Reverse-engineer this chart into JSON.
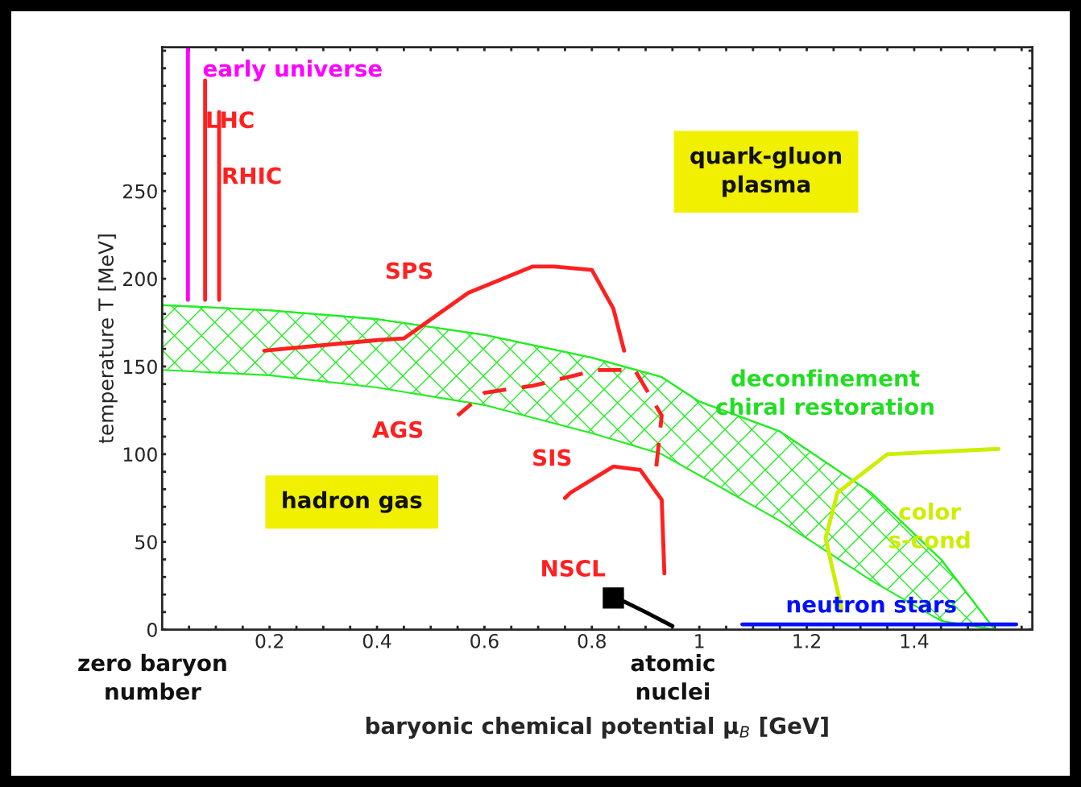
{
  "chart_data": {
    "type": "line",
    "xlabel": "baryonic chemical potential μ$_{B}$ [GeV]",
    "ylabel": "temperature T [MeV]",
    "xlim": [
      0,
      1.62
    ],
    "ylim": [
      0,
      332
    ],
    "xticks": [
      {
        "value": 0.05,
        "label": null
      },
      {
        "value": 0.1,
        "label": null
      },
      {
        "value": 0.15,
        "label": null
      },
      0.2,
      {
        "value": 0.25,
        "label": null
      },
      {
        "value": 0.3,
        "label": null
      },
      {
        "value": 0.35,
        "label": null
      },
      0.4,
      {
        "value": 0.45,
        "label": null
      },
      {
        "value": 0.5,
        "label": null
      },
      {
        "value": 0.55,
        "label": null
      },
      0.6,
      {
        "value": 0.65,
        "label": null
      },
      {
        "value": 0.7,
        "label": null
      },
      {
        "value": 0.75,
        "label": null
      },
      0.8,
      {
        "value": 0.85,
        "label": null
      },
      {
        "value": 0.9,
        "label": null
      },
      {
        "value": 0.95,
        "label": null
      },
      1,
      {
        "value": 1.05,
        "label": null
      },
      {
        "value": 1.1,
        "label": null
      },
      {
        "value": 1.15,
        "label": null
      },
      1.2,
      {
        "value": 1.25,
        "label": null
      },
      {
        "value": 1.3,
        "label": null
      },
      {
        "value": 1.35,
        "label": null
      },
      1.4,
      {
        "value": 1.45,
        "label": null
      },
      {
        "value": 1.5,
        "label": null
      },
      {
        "value": 1.55,
        "label": null
      },
      {
        "value": 1.6,
        "label": null
      }
    ],
    "yticks": [
      0,
      {
        "value": 10,
        "label": null
      },
      {
        "value": 20,
        "label": null
      },
      {
        "value": 30,
        "label": null
      },
      {
        "value": 40,
        "label": null
      },
      50,
      {
        "value": 60,
        "label": null
      },
      {
        "value": 70,
        "label": null
      },
      {
        "value": 80,
        "label": null
      },
      {
        "value": 90,
        "label": null
      },
      100,
      {
        "value": 110,
        "label": null
      },
      {
        "value": 120,
        "label": null
      },
      {
        "value": 130,
        "label": null
      },
      {
        "value": 140,
        "label": null
      },
      150,
      {
        "value": 160,
        "label": null
      },
      {
        "value": 170,
        "label": null
      },
      {
        "value": 180,
        "label": null
      },
      {
        "value": 190,
        "label": null
      },
      200,
      {
        "value": 210,
        "label": null
      },
      {
        "value": 220,
        "label": null
      },
      {
        "value": 230,
        "label": null
      },
      {
        "value": 240,
        "label": null
      },
      250,
      {
        "value": 260,
        "label": null
      },
      {
        "value": 270,
        "label": null
      },
      {
        "value": 280,
        "label": null
      },
      {
        "value": 290,
        "label": null
      },
      {
        "value": 300,
        "label": null
      },
      {
        "value": 310,
        "label": null
      },
      {
        "value": 320,
        "label": null
      },
      {
        "value": 330,
        "label": null
      }
    ],
    "grid": false,
    "legend": false,
    "series": [
      {
        "color": "#22ee22",
        "x": [
          0,
          0.2,
          0.4,
          0.6,
          0.8,
          0.93,
          1.0,
          1.15,
          1.32,
          1.45,
          1.55
        ],
        "values": [
          185,
          182,
          177,
          168,
          155,
          144,
          130,
          113,
          78,
          40,
          0
        ],
        "lower": [
          148,
          145,
          138,
          128,
          112,
          100,
          88,
          62,
          28,
          5,
          0
        ],
        "upper": [
          185,
          182,
          177,
          168,
          155,
          144,
          130,
          113,
          78,
          40,
          0
        ]
      },
      {
        "color": "#ff00ff",
        "x": [
          0.048,
          0.048
        ],
        "values": [
          332,
          188
        ]
      },
      {
        "color": "#ff2020",
        "x": [
          0.08,
          0.08
        ],
        "values": [
          313,
          188
        ]
      },
      {
        "color": "#ff2020",
        "x": [
          0.106,
          0.106
        ],
        "values": [
          295,
          188
        ]
      },
      {
        "color": "#ff2020",
        "x": [
          0.86,
          0.84,
          0.8,
          0.73,
          0.69,
          0.57,
          0.45,
          0.4,
          0.19
        ],
        "values": [
          159,
          183,
          205,
          207,
          207,
          192,
          166,
          165,
          159
        ]
      },
      {
        "color": "#ff2020",
        "line_style": "dashed",
        "x": [
          0.92,
          0.93,
          0.88,
          0.81,
          0.69,
          0.6,
          0.55
        ],
        "values": [
          93,
          122,
          148,
          148,
          139,
          135,
          122
        ]
      },
      {
        "color": "#ff2020",
        "x": [
          0.935,
          0.93,
          0.89,
          0.84,
          0.76,
          0.75
        ],
        "values": [
          32,
          74,
          91,
          93,
          78,
          75
        ]
      },
      {
        "color": "#ccee00",
        "x": [
          1.557,
          1.35,
          1.257,
          1.235,
          1.265
        ],
        "values": [
          103,
          100,
          78,
          52,
          12
        ]
      },
      {
        "color": "#0010ff",
        "x": [
          1.08,
          1.59
        ],
        "values": [
          3,
          3
        ]
      },
      {
        "color": "#000000",
        "x": [
          0.86,
          0.9,
          0.95
        ],
        "values": [
          16,
          10,
          2
        ]
      },
      {
        "type": "scatter",
        "marker": "square",
        "color": "#000000",
        "x": [
          0.84
        ],
        "values": [
          18
        ]
      }
    ],
    "annotations": [
      "early universe",
      "LHC",
      "RHIC",
      "quark-gluon\nplasma",
      "SPS",
      "deconfinement\nchiral restoration",
      "AGS",
      "SIS",
      "hadron gas",
      "color\ns-cond",
      "NSCL",
      "neutron stars",
      "zero baryon\nnumber",
      "atomic\nnuclei"
    ]
  }
}
